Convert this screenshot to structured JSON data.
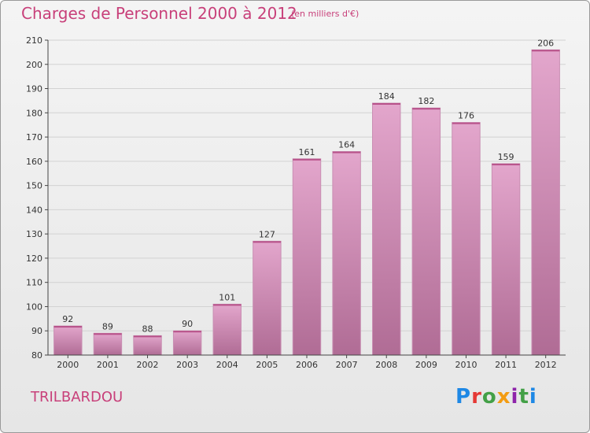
{
  "title": "Charges de Personnel 2000 à 2012",
  "subtitle": "(en milliers d'€)",
  "commune": "TRILBARDOU",
  "logo_text": "Proxiti",
  "colors": {
    "accent": "#c8407a",
    "bar_top": "#e3a6cc",
    "bar_bottom": "#b06c95",
    "grid": "#d2d2d2",
    "axis": "#444444"
  },
  "chart_data": {
    "type": "bar",
    "title": "Charges de Personnel 2000 à 2012",
    "subtitle": "(en milliers d'€)",
    "categories": [
      "2000",
      "2001",
      "2002",
      "2003",
      "2004",
      "2005",
      "2006",
      "2007",
      "2008",
      "2009",
      "2010",
      "2011",
      "2012"
    ],
    "values": [
      92,
      89,
      88,
      90,
      101,
      127,
      161,
      164,
      184,
      182,
      176,
      159,
      206
    ],
    "ylim": [
      80,
      210
    ],
    "yticks": [
      80,
      90,
      100,
      110,
      120,
      130,
      140,
      150,
      160,
      170,
      180,
      190,
      200,
      210
    ],
    "grid": true,
    "data_labels": true
  }
}
